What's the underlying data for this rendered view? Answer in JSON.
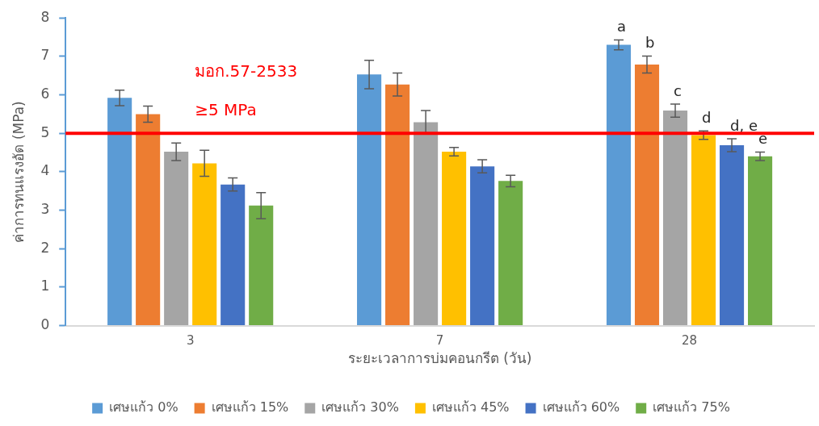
{
  "chart_data": {
    "type": "bar",
    "categories": [
      "3",
      "7",
      "28"
    ],
    "xlabel": "ระยะเวลาการบ่มคอนกรีต (วัน)",
    "ylabel": "ค่าการทนแรงอัด (MPa)",
    "ylim": [
      0,
      8
    ],
    "yticks": [
      0,
      1,
      2,
      3,
      4,
      5,
      6,
      7,
      8
    ],
    "grid": false,
    "legend": "bottom",
    "series": [
      {
        "name": "เศษแก้ว 0%",
        "color": "#5b9bd5",
        "values": [
          5.92,
          6.53,
          7.3
        ],
        "errors": [
          0.2,
          0.37,
          0.13
        ],
        "value_labels": [
          null,
          null,
          "a"
        ]
      },
      {
        "name": "เศษแก้ว 15%",
        "color": "#ed7d31",
        "values": [
          5.5,
          6.27,
          6.79
        ],
        "errors": [
          0.21,
          0.3,
          0.22
        ],
        "value_labels": [
          null,
          null,
          "b"
        ]
      },
      {
        "name": "เศษแก้ว 30%",
        "color": "#a5a5a5",
        "values": [
          4.52,
          5.29,
          5.59
        ],
        "errors": [
          0.23,
          0.3,
          0.17
        ],
        "value_labels": [
          null,
          null,
          "c"
        ]
      },
      {
        "name": "เศษแก้ว 45%",
        "color": "#ffc000",
        "values": [
          4.22,
          4.52,
          4.95
        ],
        "errors": [
          0.34,
          0.11,
          0.11
        ],
        "value_labels": [
          null,
          null,
          "d"
        ]
      },
      {
        "name": "เศษแก้ว 60%",
        "color": "#4472c4",
        "values": [
          3.67,
          4.14,
          4.69
        ],
        "errors": [
          0.17,
          0.17,
          0.17
        ],
        "value_labels": [
          null,
          null,
          "d, e"
        ]
      },
      {
        "name": "เศษแก้ว 75%",
        "color": "#70ad47",
        "values": [
          3.12,
          3.76,
          4.4
        ],
        "errors": [
          0.34,
          0.15,
          0.11
        ],
        "value_labels": [
          null,
          null,
          "e"
        ]
      }
    ],
    "ref_lines": [
      {
        "axis": "y",
        "value": 5,
        "label": "≥5 MPa",
        "color": "#ff0000"
      }
    ],
    "annotations": [
      "มอก.57-2533"
    ]
  }
}
